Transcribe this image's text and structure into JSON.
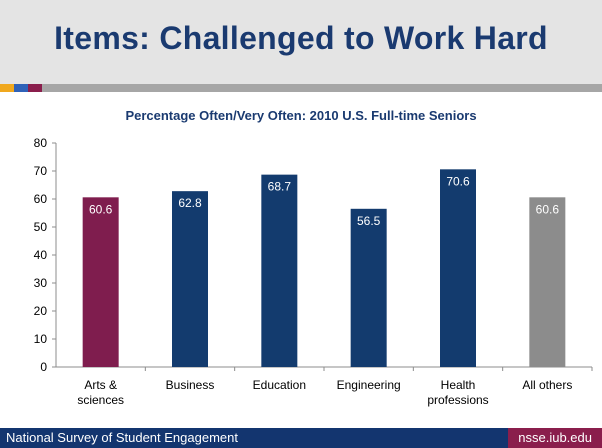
{
  "slide": {
    "title": "Items: Challenged to Work Hard",
    "footer_left": "National Survey of Student Engagement",
    "footer_right": "nsse.iub.edu"
  },
  "colors": {
    "title": "#1a3a70",
    "footer_bg": "#13356f",
    "footer_url_bg": "#8a1e4c",
    "accent_1": "#f0a81e",
    "accent_2": "#2f62b8",
    "accent_3": "#8a1e4c",
    "accent_rest": "#a6a6a6"
  },
  "chart_data": {
    "type": "bar",
    "title": "Percentage Often/Very Often: 2010 U.S. Full-time Seniors",
    "xlabel": "",
    "ylabel": "",
    "ylim": [
      0,
      80
    ],
    "yticks": [
      0,
      10,
      20,
      30,
      40,
      50,
      60,
      70,
      80
    ],
    "grid": false,
    "legend": "none",
    "categories": [
      [
        "Arts &",
        "sciences"
      ],
      [
        "Business"
      ],
      [
        "Education"
      ],
      [
        "Engineering"
      ],
      [
        "Health",
        "professions"
      ],
      [
        "All others"
      ]
    ],
    "values": [
      60.6,
      62.8,
      68.7,
      56.5,
      70.6,
      60.6
    ],
    "labels": [
      "60.6",
      "62.8",
      "68.7",
      "56.5",
      "70.6",
      "60.6"
    ],
    "bar_colors": [
      "#7f1d4e",
      "#133b6e",
      "#133b6e",
      "#133b6e",
      "#133b6e",
      "#8c8c8c"
    ]
  }
}
